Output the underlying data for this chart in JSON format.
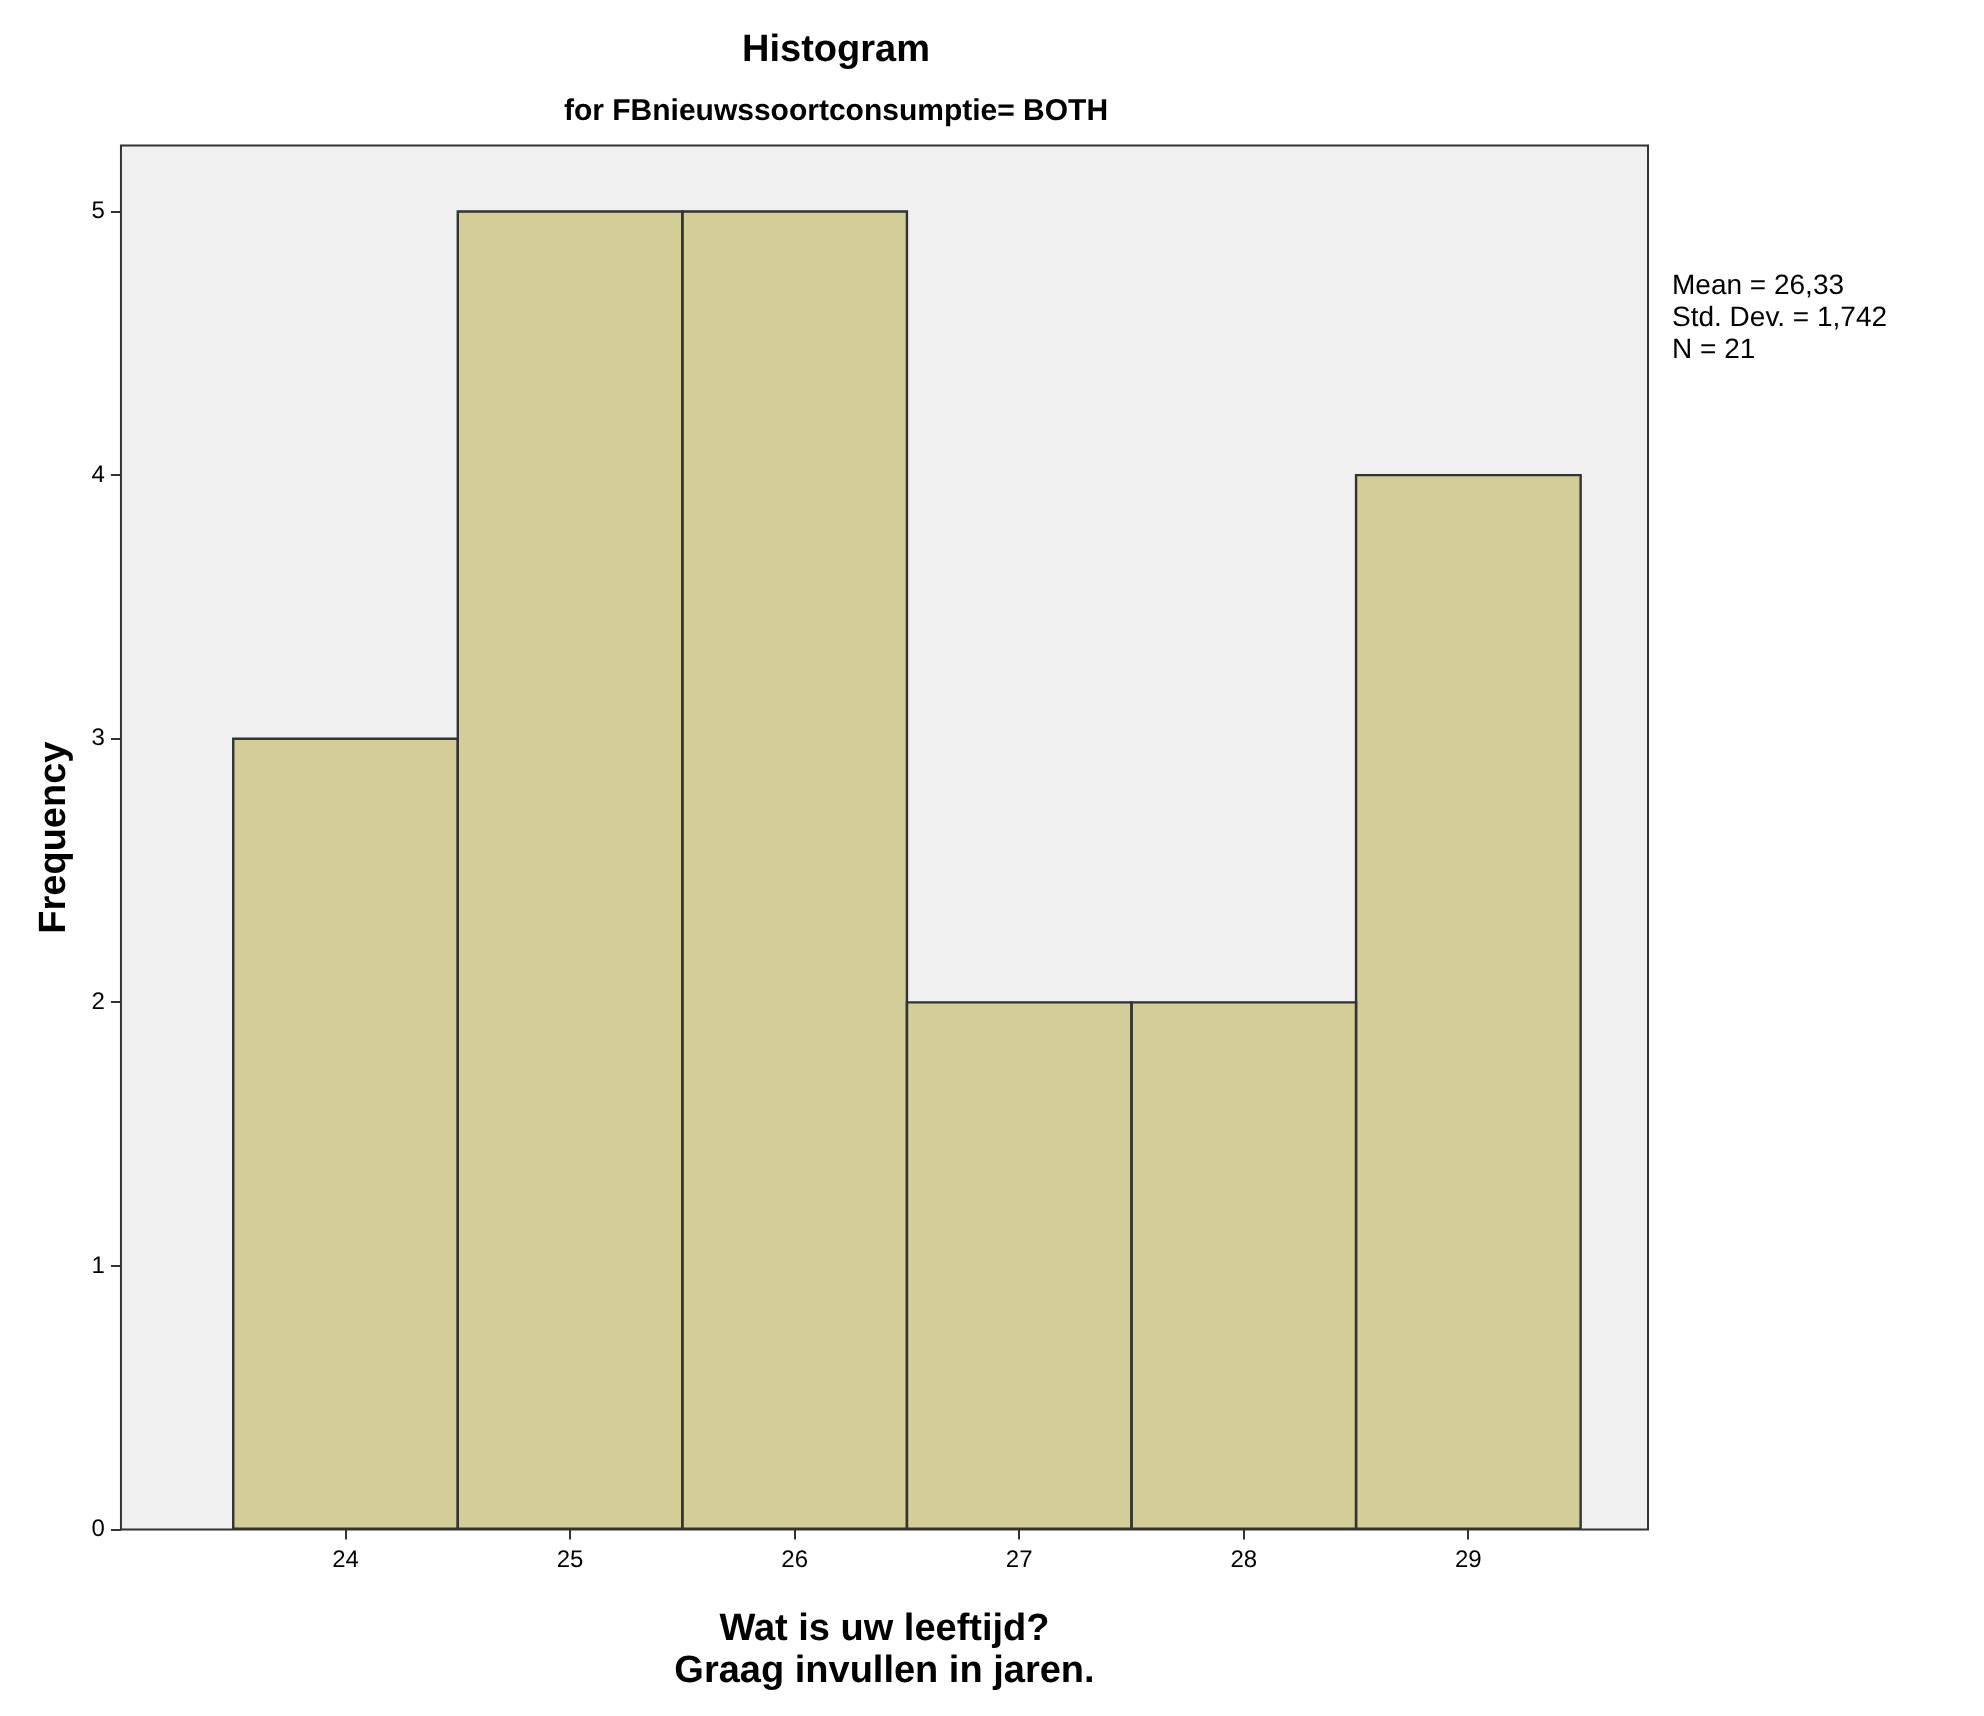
{
  "chart_data": {
    "type": "histogram",
    "title": "Histogram",
    "subtitle": "for FBnieuwssoortconsumptie= BOTH",
    "xlabel": "Wat is uw leeftijd?\nGraag invullen in jaren.",
    "ylabel": "Frequency",
    "bins": [
      23.5,
      24.5,
      25.5,
      26.5,
      27.5,
      28.5,
      29.5
    ],
    "values": [
      3,
      5,
      5,
      2,
      2,
      4
    ],
    "color": "#d3ce97",
    "xlim": [
      23.0,
      29.8
    ],
    "xticks": [
      24,
      25,
      26,
      27,
      28,
      29
    ],
    "ylim": [
      0,
      5.25
    ],
    "yticks": [
      0,
      1,
      2,
      3,
      4,
      5
    ],
    "grid": false,
    "legend": false,
    "annotations": [
      "Mean = 26,33",
      "Std. Dev. = 1,742",
      "N = 21"
    ]
  }
}
